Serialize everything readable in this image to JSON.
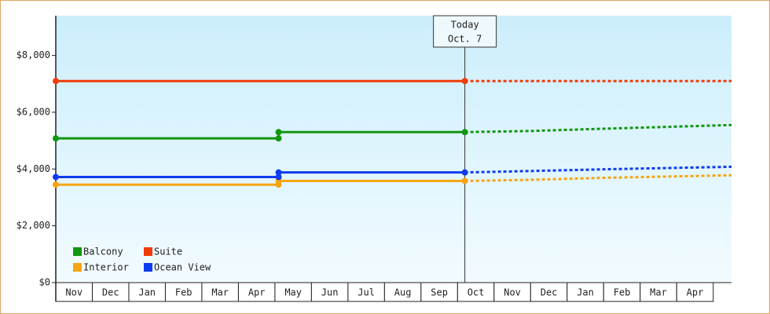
{
  "chart_data": {
    "type": "line",
    "categories": [
      "Nov",
      "Dec",
      "Jan",
      "Feb",
      "Mar",
      "Apr",
      "May",
      "Jun",
      "Jul",
      "Aug",
      "Sep",
      "Oct",
      "Nov",
      "Dec",
      "Jan",
      "Feb",
      "Mar",
      "Apr"
    ],
    "xlim": [
      0,
      18.5
    ],
    "ylim": [
      0,
      9400
    ],
    "yticks": [
      {
        "value": 0,
        "label": "$0"
      },
      {
        "value": 2000,
        "label": "$2,000"
      },
      {
        "value": 4000,
        "label": "$4,000"
      },
      {
        "value": 6000,
        "label": "$6,000"
      },
      {
        "value": 8000,
        "label": "$8,000"
      }
    ],
    "annotation": {
      "x": 11.2,
      "lines": [
        "Today",
        "Oct. 7"
      ]
    },
    "legend": "bottom-left",
    "series": [
      {
        "name": "Balcony",
        "color": "#129612",
        "x": [
          0,
          6.1,
          6.1,
          11.2
        ],
        "values": [
          5080,
          5080,
          5300,
          5300
        ],
        "projection": {
          "x": [
            11.2,
            13,
            15,
            18.5
          ],
          "values": [
            5300,
            5340,
            5420,
            5550
          ]
        }
      },
      {
        "name": "Suite",
        "color": "#f03c0a",
        "x": [
          0,
          11.2
        ],
        "values": [
          7100,
          7100
        ],
        "projection": {
          "x": [
            11.2,
            18.5
          ],
          "values": [
            7100,
            7100
          ]
        }
      },
      {
        "name": "Interior",
        "color": "#f5a512",
        "x": [
          0,
          6.1,
          6.1,
          11.2
        ],
        "values": [
          3450,
          3450,
          3580,
          3580
        ],
        "projection": {
          "x": [
            11.2,
            13,
            15,
            18.5
          ],
          "values": [
            3580,
            3620,
            3690,
            3780
          ]
        }
      },
      {
        "name": "Ocean View",
        "color": "#0f3cf0",
        "x": [
          0,
          6.1,
          6.1,
          11.2
        ],
        "values": [
          3720,
          3720,
          3880,
          3880
        ],
        "projection": {
          "x": [
            11.2,
            13,
            15,
            18.5
          ],
          "values": [
            3880,
            3930,
            3990,
            4080
          ]
        }
      }
    ]
  }
}
